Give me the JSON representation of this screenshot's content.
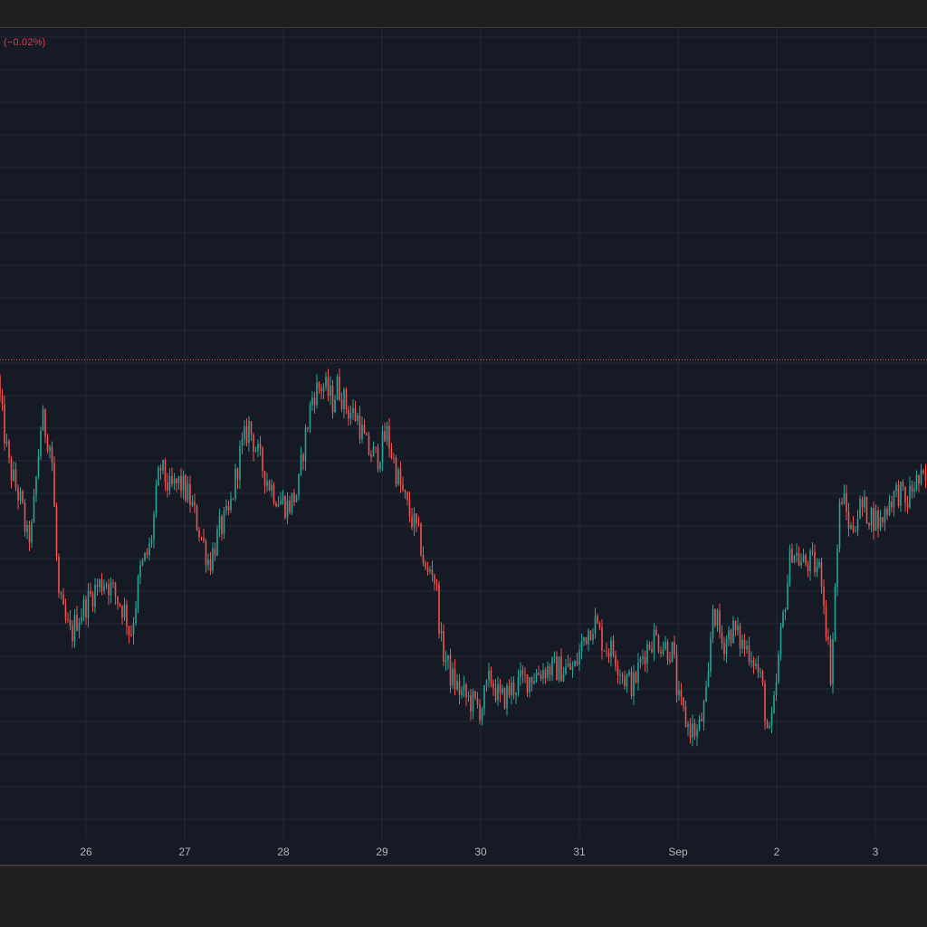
{
  "legend": {
    "change_text": "(−0.02%)"
  },
  "colors": {
    "background": "#161a25",
    "grid": "#252a37",
    "up": "#26a69a",
    "down": "#ef5350",
    "last_price_line": "#ef5350",
    "axis_text": "#b2b5be"
  },
  "chart_data": {
    "type": "candlestick",
    "x_tick_labels": [
      "26",
      "27",
      "28",
      "29",
      "30",
      "31",
      "Sep",
      "2",
      "3"
    ],
    "x_range_days": [
      25.1,
      34.5
    ],
    "y_range_relative": [
      0,
      1
    ],
    "grid": true,
    "last_price_relative": 0.591,
    "price_path_relative": [
      [
        25.1,
        0.57
      ],
      [
        25.15,
        0.52
      ],
      [
        25.22,
        0.46
      ],
      [
        25.3,
        0.43
      ],
      [
        25.35,
        0.41
      ],
      [
        25.4,
        0.37
      ],
      [
        25.45,
        0.38
      ],
      [
        25.55,
        0.52
      ],
      [
        25.6,
        0.5
      ],
      [
        25.65,
        0.48
      ],
      [
        25.72,
        0.3
      ],
      [
        25.78,
        0.27
      ],
      [
        25.85,
        0.25
      ],
      [
        25.9,
        0.27
      ],
      [
        26.0,
        0.29
      ],
      [
        26.1,
        0.31
      ],
      [
        26.2,
        0.32
      ],
      [
        26.3,
        0.3
      ],
      [
        26.4,
        0.28
      ],
      [
        26.45,
        0.25
      ],
      [
        26.55,
        0.33
      ],
      [
        26.65,
        0.36
      ],
      [
        26.75,
        0.46
      ],
      [
        26.85,
        0.43
      ],
      [
        26.95,
        0.44
      ],
      [
        27.05,
        0.42
      ],
      [
        27.15,
        0.38
      ],
      [
        27.25,
        0.34
      ],
      [
        27.35,
        0.38
      ],
      [
        27.45,
        0.4
      ],
      [
        27.55,
        0.47
      ],
      [
        27.65,
        0.51
      ],
      [
        27.75,
        0.47
      ],
      [
        27.85,
        0.44
      ],
      [
        27.95,
        0.42
      ],
      [
        28.05,
        0.41
      ],
      [
        28.15,
        0.43
      ],
      [
        28.2,
        0.48
      ],
      [
        28.3,
        0.55
      ],
      [
        28.4,
        0.56
      ],
      [
        28.5,
        0.54
      ],
      [
        28.55,
        0.56
      ],
      [
        28.65,
        0.53
      ],
      [
        28.75,
        0.52
      ],
      [
        28.85,
        0.48
      ],
      [
        28.95,
        0.47
      ],
      [
        29.05,
        0.5
      ],
      [
        29.15,
        0.45
      ],
      [
        29.25,
        0.41
      ],
      [
        29.35,
        0.38
      ],
      [
        29.4,
        0.36
      ],
      [
        29.45,
        0.32
      ],
      [
        29.5,
        0.34
      ],
      [
        29.55,
        0.31
      ],
      [
        29.6,
        0.24
      ],
      [
        29.7,
        0.2
      ],
      [
        29.8,
        0.18
      ],
      [
        29.9,
        0.17
      ],
      [
        30.0,
        0.16
      ],
      [
        30.1,
        0.2
      ],
      [
        30.2,
        0.17
      ],
      [
        30.35,
        0.19
      ],
      [
        30.5,
        0.2
      ],
      [
        30.65,
        0.21
      ],
      [
        30.8,
        0.21
      ],
      [
        30.95,
        0.21
      ],
      [
        31.05,
        0.25
      ],
      [
        31.15,
        0.27
      ],
      [
        31.25,
        0.24
      ],
      [
        31.35,
        0.23
      ],
      [
        31.45,
        0.2
      ],
      [
        31.55,
        0.19
      ],
      [
        31.65,
        0.23
      ],
      [
        31.75,
        0.25
      ],
      [
        31.85,
        0.24
      ],
      [
        31.95,
        0.23
      ],
      [
        32.0,
        0.17
      ],
      [
        32.1,
        0.14
      ],
      [
        32.2,
        0.13
      ],
      [
        32.3,
        0.18
      ],
      [
        32.35,
        0.29
      ],
      [
        32.45,
        0.24
      ],
      [
        32.55,
        0.26
      ],
      [
        32.65,
        0.24
      ],
      [
        32.75,
        0.23
      ],
      [
        32.85,
        0.19
      ],
      [
        32.92,
        0.12
      ],
      [
        32.97,
        0.16
      ],
      [
        33.05,
        0.26
      ],
      [
        33.15,
        0.36
      ],
      [
        33.25,
        0.34
      ],
      [
        33.35,
        0.34
      ],
      [
        33.45,
        0.33
      ],
      [
        33.55,
        0.2
      ],
      [
        33.6,
        0.33
      ],
      [
        33.65,
        0.43
      ],
      [
        33.75,
        0.38
      ],
      [
        33.85,
        0.41
      ],
      [
        33.95,
        0.4
      ],
      [
        34.05,
        0.39
      ],
      [
        34.15,
        0.42
      ],
      [
        34.25,
        0.43
      ],
      [
        34.3,
        0.41
      ],
      [
        34.4,
        0.44
      ],
      [
        34.5,
        0.44
      ]
    ]
  }
}
